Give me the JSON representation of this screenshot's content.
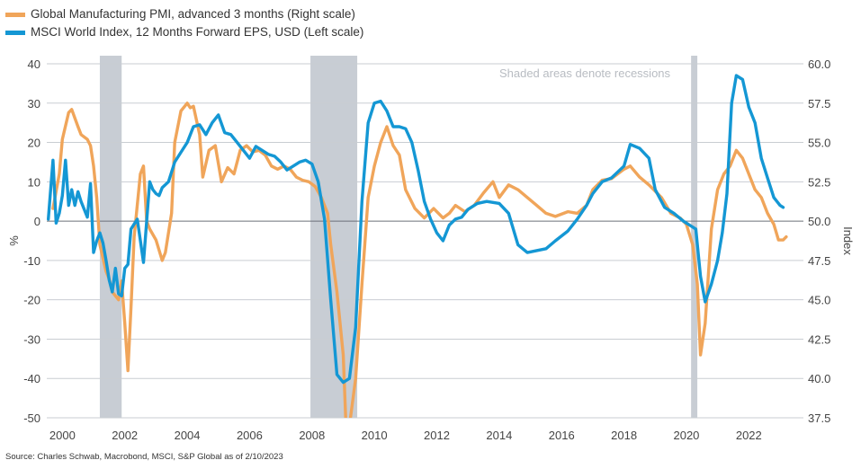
{
  "chart_data": {
    "type": "line",
    "title": "",
    "legend_position": "top-left",
    "note": "Shaded areas denote recessions",
    "source": "Source: Charles Schwab, Macrobond, MSCI, S&P Global as of 2/10/2023",
    "left_axis": {
      "label": "%",
      "range": [
        -50,
        40
      ],
      "ticks": [
        40,
        30,
        20,
        10,
        0,
        -10,
        -20,
        -30,
        -40,
        -50
      ]
    },
    "right_axis": {
      "label": "Index",
      "range": [
        37.5,
        60.0
      ],
      "ticks": [
        "60.0",
        "57.5",
        "55.0",
        "52.5",
        "50.0",
        "47.5",
        "45.0",
        "42.5",
        "40.0",
        "37.5"
      ]
    },
    "x_axis": {
      "range": [
        1999.5,
        2023.75
      ],
      "ticks": [
        "2000",
        "2002",
        "2004",
        "2006",
        "2008",
        "2010",
        "2012",
        "2014",
        "2016",
        "2018",
        "2020",
        "2022"
      ]
    },
    "recessions": [
      [
        2001.2,
        2001.9
      ],
      [
        2007.95,
        2009.45
      ],
      [
        2020.15,
        2020.35
      ]
    ],
    "colors": {
      "pmi": "#f0a55a",
      "eps": "#1497d4",
      "recession": "#c8cdd4",
      "grid": "#c9cdd2",
      "zero": "#6b7079"
    },
    "series": [
      {
        "name": "Global Manufacturing PMI, advanced 3 months (Right scale)",
        "axis": "right",
        "x": [
          1999.7,
          1999.9,
          2000.0,
          2000.2,
          2000.3,
          2000.5,
          2000.6,
          2000.8,
          2000.9,
          2001.0,
          2001.1,
          2001.2,
          2001.4,
          2001.5,
          2001.6,
          2001.8,
          2001.9,
          2002.0,
          2002.1,
          2002.2,
          2002.3,
          2002.5,
          2002.6,
          2002.7,
          2002.8,
          2003.0,
          2003.2,
          2003.3,
          2003.5,
          2003.6,
          2003.8,
          2004.0,
          2004.1,
          2004.2,
          2004.4,
          2004.5,
          2004.7,
          2004.9,
          2005.1,
          2005.3,
          2005.5,
          2005.7,
          2005.9,
          2006.1,
          2006.3,
          2006.5,
          2006.7,
          2006.9,
          2007.1,
          2007.3,
          2007.5,
          2007.7,
          2007.9,
          2008.1,
          2008.3,
          2008.5,
          2008.6,
          2008.8,
          2009.0,
          2009.1,
          2009.2,
          2009.4,
          2009.6,
          2009.8,
          2010.0,
          2010.2,
          2010.4,
          2010.6,
          2010.8,
          2011.0,
          2011.3,
          2011.6,
          2011.9,
          2012.2,
          2012.4,
          2012.6,
          2012.9,
          2013.2,
          2013.5,
          2013.8,
          2014.0,
          2014.3,
          2014.6,
          2014.9,
          2015.2,
          2015.5,
          2015.8,
          2016.2,
          2016.5,
          2016.8,
          2017.0,
          2017.3,
          2017.6,
          2018.0,
          2018.2,
          2018.5,
          2018.8,
          2019.2,
          2019.5,
          2019.8,
          2020.0,
          2020.2,
          2020.35,
          2020.45,
          2020.6,
          2020.8,
          2021.0,
          2021.2,
          2021.4,
          2021.6,
          2021.8,
          2022.0,
          2022.2,
          2022.4,
          2022.6,
          2022.8,
          2022.95,
          2023.1,
          2023.2
        ],
        "y": [
          50.8,
          53.0,
          55.2,
          56.9,
          57.1,
          56.0,
          55.5,
          55.2,
          54.8,
          53.5,
          51.5,
          48.5,
          46.8,
          46.3,
          45.5,
          45.0,
          46.2,
          43.5,
          40.5,
          44.5,
          49.0,
          53.0,
          53.5,
          50.0,
          49.5,
          48.8,
          47.5,
          48.0,
          50.5,
          55.0,
          57.0,
          57.5,
          57.2,
          57.3,
          55.5,
          52.8,
          54.5,
          54.8,
          52.5,
          53.4,
          53.0,
          54.5,
          54.8,
          54.4,
          54.5,
          54.2,
          53.5,
          53.3,
          53.5,
          53.3,
          52.8,
          52.6,
          52.5,
          52.2,
          51.5,
          50.5,
          48.5,
          45.5,
          41.5,
          36.5,
          37.0,
          40.0,
          46.0,
          51.5,
          53.5,
          55.0,
          56.0,
          54.8,
          54.2,
          52.0,
          50.8,
          50.2,
          50.8,
          50.2,
          50.5,
          51.0,
          50.6,
          51.0,
          51.8,
          52.5,
          51.5,
          52.3,
          52.0,
          51.5,
          51.0,
          50.5,
          50.3,
          50.6,
          50.5,
          51.0,
          52.0,
          52.6,
          52.7,
          53.3,
          53.5,
          52.8,
          52.3,
          51.5,
          50.5,
          50.2,
          49.8,
          48.5,
          46.0,
          41.5,
          43.5,
          49.5,
          52.0,
          53.0,
          53.5,
          54.5,
          54.0,
          53.0,
          52.0,
          51.5,
          50.5,
          49.8,
          48.8,
          48.8,
          49.0
        ]
      },
      {
        "name": "MSCI World Index, 12 Months Forward EPS, USD (Left scale)",
        "axis": "left",
        "x": [
          1999.55,
          1999.7,
          1999.8,
          1999.9,
          2000.0,
          2000.1,
          2000.2,
          2000.3,
          2000.4,
          2000.5,
          2000.6,
          2000.7,
          2000.8,
          2000.9,
          2001.0,
          2001.1,
          2001.2,
          2001.3,
          2001.4,
          2001.5,
          2001.6,
          2001.7,
          2001.8,
          2001.9,
          2002.0,
          2002.1,
          2002.2,
          2002.4,
          2002.6,
          2002.8,
          2002.9,
          2003.0,
          2003.1,
          2003.2,
          2003.4,
          2003.6,
          2003.8,
          2004.0,
          2004.2,
          2004.4,
          2004.6,
          2004.8,
          2005.0,
          2005.2,
          2005.4,
          2005.6,
          2005.8,
          2006.0,
          2006.2,
          2006.4,
          2006.6,
          2006.8,
          2007.0,
          2007.2,
          2007.4,
          2007.6,
          2007.8,
          2008.0,
          2008.2,
          2008.4,
          2008.6,
          2008.8,
          2009.0,
          2009.2,
          2009.4,
          2009.6,
          2009.8,
          2010.0,
          2010.2,
          2010.4,
          2010.6,
          2010.8,
          2011.0,
          2011.2,
          2011.4,
          2011.6,
          2011.8,
          2012.0,
          2012.2,
          2012.4,
          2012.6,
          2012.8,
          2013.0,
          2013.3,
          2013.6,
          2014.0,
          2014.3,
          2014.6,
          2014.9,
          2015.2,
          2015.5,
          2015.8,
          2016.2,
          2016.5,
          2016.8,
          2017.0,
          2017.3,
          2017.6,
          2018.0,
          2018.2,
          2018.5,
          2018.8,
          2019.0,
          2019.3,
          2019.6,
          2019.9,
          2020.1,
          2020.3,
          2020.45,
          2020.6,
          2020.8,
          2021.0,
          2021.15,
          2021.3,
          2021.45,
          2021.6,
          2021.8,
          2022.0,
          2022.2,
          2022.4,
          2022.6,
          2022.8,
          2023.0,
          2023.1
        ],
        "y": [
          0.5,
          15.5,
          -0.5,
          2.0,
          6.5,
          15.5,
          4.0,
          8.0,
          4.0,
          7.5,
          5.0,
          3.0,
          1.0,
          9.5,
          -8.0,
          -5.0,
          -3.0,
          -5.5,
          -10.0,
          -15.0,
          -18.0,
          -12.0,
          -18.5,
          -19.0,
          -12.0,
          -11.0,
          -2.0,
          0.5,
          -10.5,
          10.0,
          8.0,
          7.0,
          6.5,
          8.5,
          10.0,
          15.0,
          17.5,
          20.0,
          24.0,
          24.5,
          22.0,
          25.0,
          27.0,
          22.5,
          22.0,
          20.0,
          18.0,
          16.0,
          19.0,
          18.0,
          17.0,
          16.5,
          15.0,
          13.0,
          14.0,
          15.0,
          15.5,
          14.5,
          10.0,
          0.5,
          -20.0,
          -39.0,
          -41.0,
          -40.0,
          -27.0,
          5.0,
          25.0,
          30.0,
          30.5,
          28.0,
          24.0,
          24.0,
          23.5,
          20.0,
          13.0,
          5.0,
          0.5,
          -3.0,
          -5.0,
          -1.0,
          0.5,
          1.0,
          3.0,
          4.5,
          5.0,
          4.5,
          2.0,
          -6.0,
          -8.0,
          -7.5,
          -7.0,
          -5.0,
          -2.5,
          0.5,
          4.0,
          7.0,
          10.0,
          11.0,
          14.0,
          19.5,
          18.5,
          16.0,
          8.0,
          3.5,
          2.0,
          0.0,
          -1.0,
          -2.0,
          -14.0,
          -20.5,
          -16.0,
          -10.0,
          -3.0,
          7.0,
          30.0,
          37.0,
          36.0,
          29.0,
          25.0,
          16.0,
          11.0,
          6.0,
          4.0,
          3.5
        ]
      }
    ]
  }
}
